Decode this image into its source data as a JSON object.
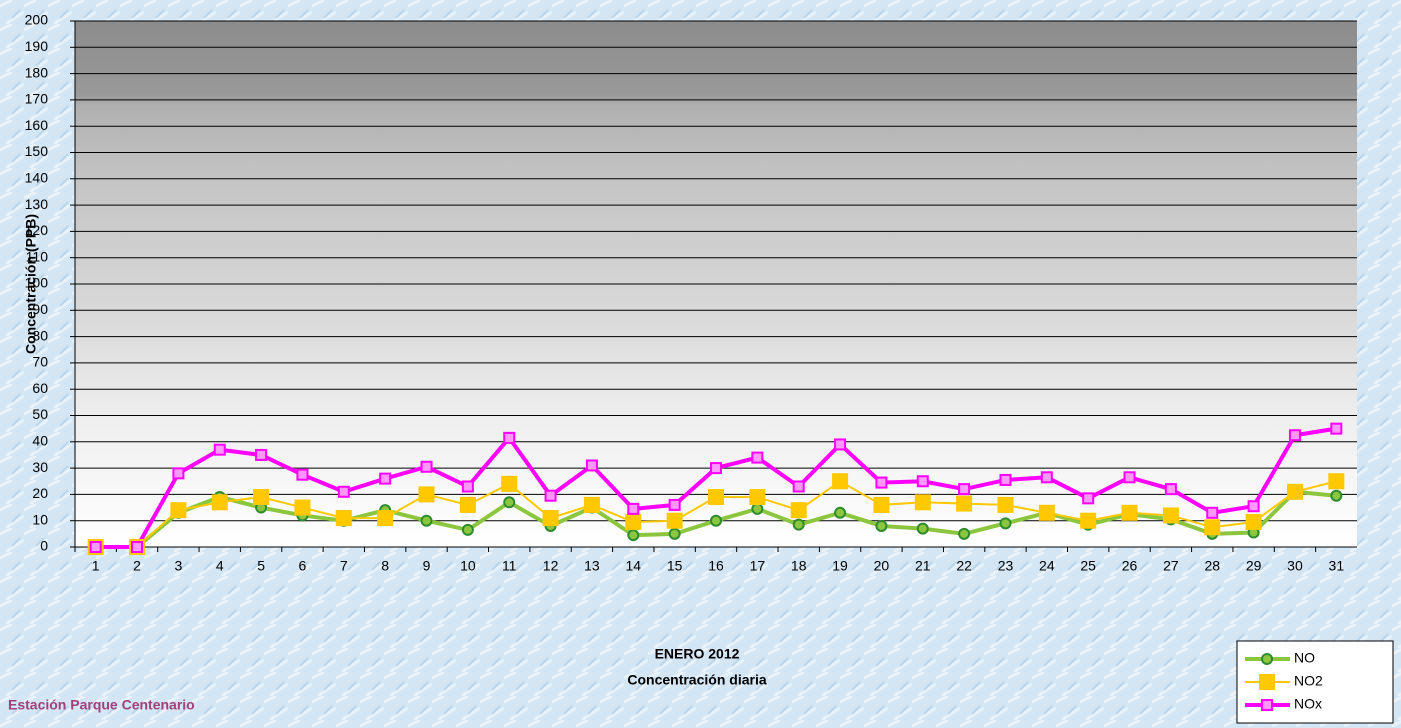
{
  "chart_data": {
    "type": "line",
    "title": "ENERO 2012",
    "subtitle": "Concentración diaria",
    "ylabel": "Concentración  (PPB)",
    "station": "Estación Parque Centenario",
    "categories": [
      "1",
      "2",
      "3",
      "4",
      "5",
      "6",
      "7",
      "8",
      "9",
      "10",
      "11",
      "12",
      "13",
      "14",
      "15",
      "16",
      "17",
      "18",
      "19",
      "20",
      "21",
      "22",
      "23",
      "24",
      "25",
      "26",
      "27",
      "28",
      "29",
      "30",
      "31"
    ],
    "series": [
      {
        "name": "NO",
        "color": "#8cc63f",
        "marker": "circle",
        "values": [
          0,
          0,
          13,
          19,
          15,
          12,
          10,
          14,
          10,
          6.5,
          17,
          8,
          15,
          4.5,
          5,
          10,
          14.5,
          8.5,
          13,
          8,
          7,
          5,
          9,
          13,
          8.5,
          12.5,
          10.5,
          5,
          5.5,
          21,
          19.5
        ]
      },
      {
        "name": "NO2",
        "color": "#ffc800",
        "marker": "square",
        "values": [
          0,
          0,
          14,
          17,
          19,
          15,
          11,
          11,
          20,
          16,
          24,
          11,
          16,
          9.5,
          10,
          19,
          19,
          14,
          25,
          16,
          17,
          16.5,
          16,
          13,
          10,
          13,
          12,
          7.5,
          9.5,
          21,
          25
        ]
      },
      {
        "name": "NOx",
        "color": "#ff00ff",
        "marker": "square",
        "values": [
          0,
          0,
          28,
          37,
          35,
          27.5,
          21,
          26,
          30.5,
          23,
          41.5,
          19.5,
          31,
          14.5,
          16,
          30,
          34,
          23,
          39,
          24.5,
          25,
          22,
          25.5,
          26.5,
          18.5,
          26.5,
          22,
          13,
          15.5,
          42.5,
          45
        ]
      }
    ],
    "ylim": [
      0,
      200
    ],
    "yticks": [
      0,
      10,
      20,
      30,
      40,
      50,
      60,
      70,
      80,
      90,
      100,
      110,
      120,
      130,
      140,
      150,
      160,
      170,
      180,
      190,
      200
    ],
    "grid": true
  }
}
